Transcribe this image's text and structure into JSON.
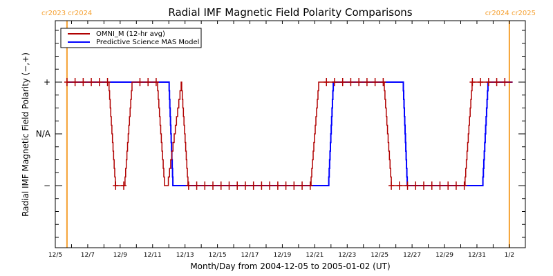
{
  "chart_data": {
    "type": "line",
    "title": "Radial IMF Magnetic Field Polarity Comparisons",
    "xlabel": "Month/Day from 2004-12-05 to 2005-01-02 (UT)",
    "ylabel": "Radial IMF Magnetic Field Polarity (−,+)",
    "x_units": "days since 2004-12-05 00:00 UT",
    "xlim": [
      0,
      28.98
    ],
    "ylim": [
      -2.2,
      2.2
    ],
    "x_ticks": [
      {
        "value": 0,
        "label": "12/5"
      },
      {
        "value": 2,
        "label": "12/7"
      },
      {
        "value": 4,
        "label": "12/9"
      },
      {
        "value": 6,
        "label": "12/11"
      },
      {
        "value": 8,
        "label": "12/13"
      },
      {
        "value": 10,
        "label": "12/15"
      },
      {
        "value": 12,
        "label": "12/17"
      },
      {
        "value": 14,
        "label": "12/19"
      },
      {
        "value": 16,
        "label": "12/21"
      },
      {
        "value": 18,
        "label": "12/23"
      },
      {
        "value": 20,
        "label": "12/25"
      },
      {
        "value": 22,
        "label": "12/27"
      },
      {
        "value": 24,
        "label": "12/29"
      },
      {
        "value": 26,
        "label": "12/31"
      },
      {
        "value": 28,
        "label": "1/2"
      }
    ],
    "x_minor_step": 1,
    "y_ticks": [
      {
        "value": 1,
        "label": "+"
      },
      {
        "value": 0,
        "label": "N/A"
      },
      {
        "value": -1,
        "label": "−"
      }
    ],
    "y_minor_step": 0.25,
    "legend": {
      "position": "top-left",
      "entries": [
        {
          "name": "OMNI_M (12-hr avg)",
          "color": "#b00000"
        },
        {
          "name": "Predictive Science MAS Model",
          "color": "#0000ff"
        }
      ]
    },
    "series": [
      {
        "name": "OMNI_M (12-hr avg)",
        "color": "#b00000",
        "style": "stepped-line-with-plus-markers",
        "points": [
          [
            0.72,
            1
          ],
          [
            3.28,
            1
          ],
          [
            3.7,
            -1
          ],
          [
            4.26,
            -1
          ],
          [
            4.73,
            1
          ],
          [
            6.27,
            1
          ],
          [
            6.73,
            -1
          ],
          [
            6.9,
            -1
          ],
          [
            7.76,
            1
          ],
          [
            8.18,
            -1
          ],
          [
            15.73,
            -1
          ],
          [
            16.24,
            1
          ],
          [
            20.25,
            1
          ],
          [
            20.72,
            -1
          ],
          [
            25.23,
            -1
          ],
          [
            25.7,
            1
          ],
          [
            28.2,
            1
          ]
        ],
        "markers": [
          0.72,
          1.22,
          1.72,
          2.22,
          2.72,
          3.22,
          3.72,
          4.22,
          4.72,
          5.22,
          5.72,
          6.22,
          6.72,
          7.22,
          7.72,
          8.22,
          8.72,
          9.22,
          9.72,
          10.22,
          10.72,
          11.22,
          11.72,
          12.22,
          12.72,
          13.22,
          13.72,
          14.22,
          14.72,
          15.22,
          15.72,
          16.22,
          16.72,
          17.22,
          17.72,
          18.22,
          18.72,
          19.22,
          19.72,
          20.22,
          20.72,
          21.22,
          21.72,
          22.22,
          22.72,
          23.22,
          23.72,
          24.22,
          24.72,
          25.22,
          25.72,
          26.22,
          26.72,
          27.22,
          27.72,
          28.22
        ]
      },
      {
        "name": "Predictive Science MAS Model",
        "color": "#0000ff",
        "style": "stepped-line",
        "points": [
          [
            0.72,
            1
          ],
          [
            7.0,
            1
          ],
          [
            7.25,
            -1
          ],
          [
            16.84,
            -1
          ],
          [
            17.14,
            1
          ],
          [
            21.44,
            1
          ],
          [
            21.7,
            -1
          ],
          [
            26.34,
            -1
          ],
          [
            26.68,
            1
          ],
          [
            28.2,
            1
          ]
        ]
      }
    ],
    "annotations": [
      {
        "type": "vertical-line",
        "x": 0.72,
        "color": "#f5a030",
        "label": "cr2023 cr2024",
        "label_position": "top-left"
      },
      {
        "type": "vertical-line",
        "x": 28.0,
        "color": "#f5a030",
        "label": "cr2024 cr2025",
        "label_position": "top-right"
      }
    ]
  }
}
